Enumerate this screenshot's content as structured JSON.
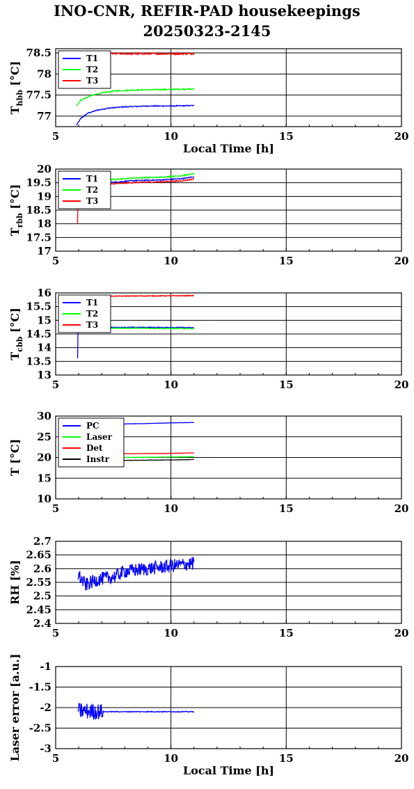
{
  "title_line1": "INO-CNR, REFIR-PAD housekeepings",
  "title_line2": "20250323-2145",
  "chart_data": [
    {
      "type": "line",
      "ylabel": "T",
      "ylabel_sub": "hbb",
      "ylabel_unit": "[°C]",
      "xlabel": "Local Time [h]",
      "xlim": [
        5,
        20
      ],
      "ylim": [
        76.75,
        78.6
      ],
      "yticks": [
        77,
        77.5,
        78,
        78.5
      ],
      "xticks": [
        5,
        10,
        15,
        20
      ],
      "legend": "top-left",
      "series": [
        {
          "name": "T1",
          "color": "#0000ff",
          "noise": 0.012,
          "points": [
            [
              5.9,
              76.78
            ],
            [
              6.1,
              76.95
            ],
            [
              6.4,
              77.07
            ],
            [
              6.8,
              77.14
            ],
            [
              7.3,
              77.19
            ],
            [
              8.0,
              77.22
            ],
            [
              9.0,
              77.24
            ],
            [
              10.0,
              77.24
            ],
            [
              11.0,
              77.25
            ]
          ]
        },
        {
          "name": "T2",
          "color": "#00ff00",
          "noise": 0.014,
          "points": [
            [
              5.9,
              77.25
            ],
            [
              6.1,
              77.38
            ],
            [
              6.5,
              77.48
            ],
            [
              7.0,
              77.55
            ],
            [
              7.6,
              77.6
            ],
            [
              8.5,
              77.62
            ],
            [
              9.5,
              77.63
            ],
            [
              10.5,
              77.64
            ],
            [
              11.0,
              77.64
            ]
          ]
        },
        {
          "name": "T3",
          "color": "#ff0000",
          "noise": 0.02,
          "points": [
            [
              5.9,
              78.47
            ],
            [
              7.0,
              78.48
            ],
            [
              9.0,
              78.48
            ],
            [
              11.0,
              78.48
            ]
          ]
        }
      ]
    },
    {
      "type": "line",
      "ylabel": "T",
      "ylabel_sub": "rbb",
      "ylabel_unit": "[°C]",
      "xlim": [
        5,
        20
      ],
      "ylim": [
        17,
        20
      ],
      "yticks": [
        17,
        17.5,
        18,
        18.5,
        19,
        19.5,
        20
      ],
      "xticks": [
        5,
        10,
        15,
        20
      ],
      "legend": "top-left",
      "series": [
        {
          "name": "T1",
          "color": "#0000ff",
          "noise": 0.02,
          "points": [
            [
              5.95,
              19.1
            ],
            [
              6.3,
              19.3
            ],
            [
              6.8,
              19.42
            ],
            [
              7.5,
              19.52
            ],
            [
              8.5,
              19.58
            ],
            [
              9.5,
              19.6
            ],
            [
              10.5,
              19.65
            ],
            [
              11.0,
              19.72
            ]
          ]
        },
        {
          "name": "T2",
          "color": "#00ff00",
          "noise": 0.02,
          "points": [
            [
              5.95,
              19.2
            ],
            [
              6.3,
              19.4
            ],
            [
              6.8,
              19.52
            ],
            [
              7.5,
              19.62
            ],
            [
              8.5,
              19.68
            ],
            [
              9.5,
              19.7
            ],
            [
              10.5,
              19.76
            ],
            [
              11.0,
              19.83
            ]
          ]
        },
        {
          "name": "T3",
          "color": "#ff0000",
          "noise": 0.02,
          "points": [
            [
              5.95,
              18.0
            ],
            [
              5.97,
              19.1
            ],
            [
              6.3,
              19.25
            ],
            [
              6.8,
              19.37
            ],
            [
              7.5,
              19.46
            ],
            [
              8.5,
              19.51
            ],
            [
              9.5,
              19.53
            ],
            [
              10.5,
              19.57
            ],
            [
              11.0,
              19.64
            ]
          ]
        }
      ]
    },
    {
      "type": "line",
      "ylabel": "T",
      "ylabel_sub": "cbb",
      "ylabel_unit": "[°C]",
      "xlim": [
        5,
        20
      ],
      "ylim": [
        13,
        16
      ],
      "yticks": [
        13,
        13.5,
        14,
        14.5,
        15,
        15.5,
        16
      ],
      "xticks": [
        5,
        10,
        15,
        20
      ],
      "legend": "top-left",
      "series": [
        {
          "name": "T1",
          "color": "#0000ff",
          "noise": 0.015,
          "points": [
            [
              5.95,
              13.6
            ],
            [
              5.97,
              14.7
            ],
            [
              7.0,
              14.74
            ],
            [
              8.5,
              14.74
            ],
            [
              10.0,
              14.74
            ],
            [
              11.0,
              14.73
            ]
          ]
        },
        {
          "name": "T2",
          "color": "#00ff00",
          "noise": 0.015,
          "points": [
            [
              5.95,
              14.6
            ],
            [
              6.1,
              14.7
            ],
            [
              7.0,
              14.71
            ],
            [
              8.5,
              14.71
            ],
            [
              10.0,
              14.7
            ],
            [
              11.0,
              14.7
            ]
          ]
        },
        {
          "name": "T3",
          "color": "#ff0000",
          "noise": 0.015,
          "points": [
            [
              5.95,
              15.88
            ],
            [
              7.0,
              15.88
            ],
            [
              9.0,
              15.89
            ],
            [
              11.0,
              15.9
            ]
          ]
        }
      ]
    },
    {
      "type": "line",
      "ylabel": "T [°C]",
      "xlim": [
        5,
        20
      ],
      "ylim": [
        10,
        30
      ],
      "yticks": [
        10,
        15,
        20,
        25,
        30
      ],
      "xticks": [
        5,
        10,
        15,
        20
      ],
      "legend": "top-left",
      "series": [
        {
          "name": "PC",
          "color": "#0000ff",
          "noise": 0.04,
          "points": [
            [
              5.95,
              28.0
            ],
            [
              7.0,
              28.1
            ],
            [
              8.0,
              28.1
            ],
            [
              9.0,
              28.2
            ],
            [
              10.0,
              28.35
            ],
            [
              11.0,
              28.45
            ]
          ]
        },
        {
          "name": "Laser",
          "color": "#00ff00",
          "noise": 0.04,
          "points": [
            [
              5.95,
              19.9
            ],
            [
              8.0,
              20.0
            ],
            [
              10.0,
              20.1
            ],
            [
              11.0,
              20.2
            ]
          ]
        },
        {
          "name": "Det",
          "color": "#ff0000",
          "noise": 0.04,
          "points": [
            [
              5.95,
              20.8
            ],
            [
              8.0,
              20.9
            ],
            [
              10.0,
              21.0
            ],
            [
              11.0,
              21.1
            ]
          ]
        },
        {
          "name": "Instr",
          "color": "#000000",
          "noise": 0.04,
          "points": [
            [
              5.95,
              19.3
            ],
            [
              8.0,
              19.3
            ],
            [
              10.0,
              19.4
            ],
            [
              11.0,
              19.5
            ]
          ]
        }
      ]
    },
    {
      "type": "line",
      "ylabel": "RH [%]",
      "xlim": [
        5,
        20
      ],
      "ylim": [
        2.4,
        2.7
      ],
      "yticks": [
        2.4,
        2.45,
        2.5,
        2.55,
        2.6,
        2.65,
        2.7
      ],
      "xticks": [
        5,
        10,
        15,
        20
      ],
      "series": [
        {
          "color": "#0000ff",
          "noise": 0.025,
          "points": [
            [
              5.95,
              2.58
            ],
            [
              6.3,
              2.54
            ],
            [
              6.8,
              2.56
            ],
            [
              7.5,
              2.57
            ],
            [
              8.0,
              2.59
            ],
            [
              9.0,
              2.6
            ],
            [
              10.0,
              2.61
            ],
            [
              11.0,
              2.62
            ]
          ]
        }
      ]
    },
    {
      "type": "line",
      "ylabel": "Laser error [a.u.]",
      "xlabel": "Local Time [h]",
      "xlim": [
        5,
        20
      ],
      "ylim": [
        -3,
        -1
      ],
      "yticks": [
        -3,
        -2.5,
        -2,
        -1.5,
        -1
      ],
      "xticks": [
        5,
        10,
        15,
        20
      ],
      "series": [
        {
          "color": "#0000ff",
          "noise": 0.01,
          "burst": [
            6.0,
            7.05,
            0.2
          ],
          "points": [
            [
              5.95,
              -2.08
            ],
            [
              7.0,
              -2.1
            ],
            [
              9.0,
              -2.1
            ],
            [
              11.0,
              -2.1
            ]
          ]
        }
      ]
    }
  ]
}
